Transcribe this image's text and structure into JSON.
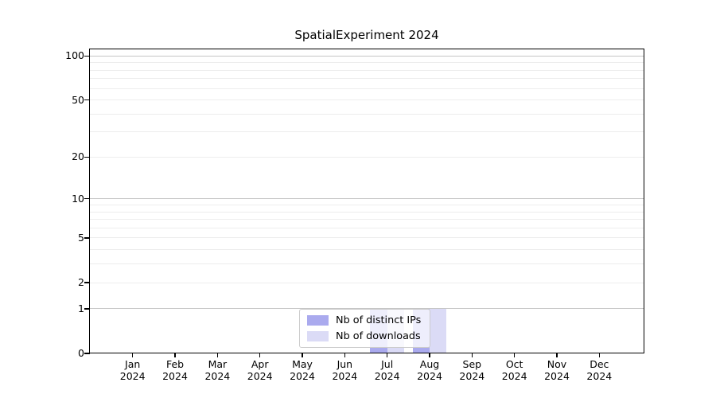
{
  "chart_data": {
    "type": "bar",
    "title": "SpatialExperiment 2024",
    "categories": [
      "Jan 2024",
      "Feb 2024",
      "Mar 2024",
      "Apr 2024",
      "May 2024",
      "Jun 2024",
      "Jul 2024",
      "Aug 2024",
      "Sep 2024",
      "Oct 2024",
      "Nov 2024",
      "Dec 2024"
    ],
    "months": [
      "Jan",
      "Feb",
      "Mar",
      "Apr",
      "May",
      "Jun",
      "Jul",
      "Aug",
      "Sep",
      "Oct",
      "Nov",
      "Dec"
    ],
    "year_label": "2024",
    "series": [
      {
        "name": "Nb of distinct IPs",
        "color": "#aaaaee",
        "values": [
          0,
          0,
          0,
          0,
          0,
          0,
          1,
          1,
          0,
          0,
          0,
          0
        ]
      },
      {
        "name": "Nb of downloads",
        "color": "#dbdbf6",
        "values": [
          0,
          0,
          0,
          0,
          0,
          0,
          1,
          1,
          0,
          0,
          0,
          0
        ]
      }
    ],
    "xlabel": "",
    "ylabel": "",
    "y_axis": {
      "scale": "log1p",
      "tick_labels": [
        "0",
        "1",
        "2",
        "5",
        "10",
        "20",
        "50",
        "100"
      ],
      "tick_values": [
        0,
        1,
        2,
        5,
        10,
        20,
        50,
        100
      ],
      "major_gridlines": [
        1,
        10,
        100
      ],
      "minor_gridlines": [
        2,
        3,
        4,
        5,
        6,
        7,
        8,
        9,
        20,
        30,
        40,
        50,
        60,
        70,
        80,
        90
      ],
      "ylim": [
        0,
        112
      ]
    },
    "grid": "horizontal",
    "legend": {
      "position": "lower-center-inside",
      "entries": [
        "Nb of distinct IPs",
        "Nb of downloads"
      ]
    },
    "colors": {
      "major_grid": "#c6c6c6",
      "minor_grid": "#ededed",
      "axis": "#000000",
      "text": "#000000",
      "legend_border": "#cccccc",
      "legend_bg": "rgba(255,255,255,0.8)",
      "background": "#ffffff"
    }
  }
}
